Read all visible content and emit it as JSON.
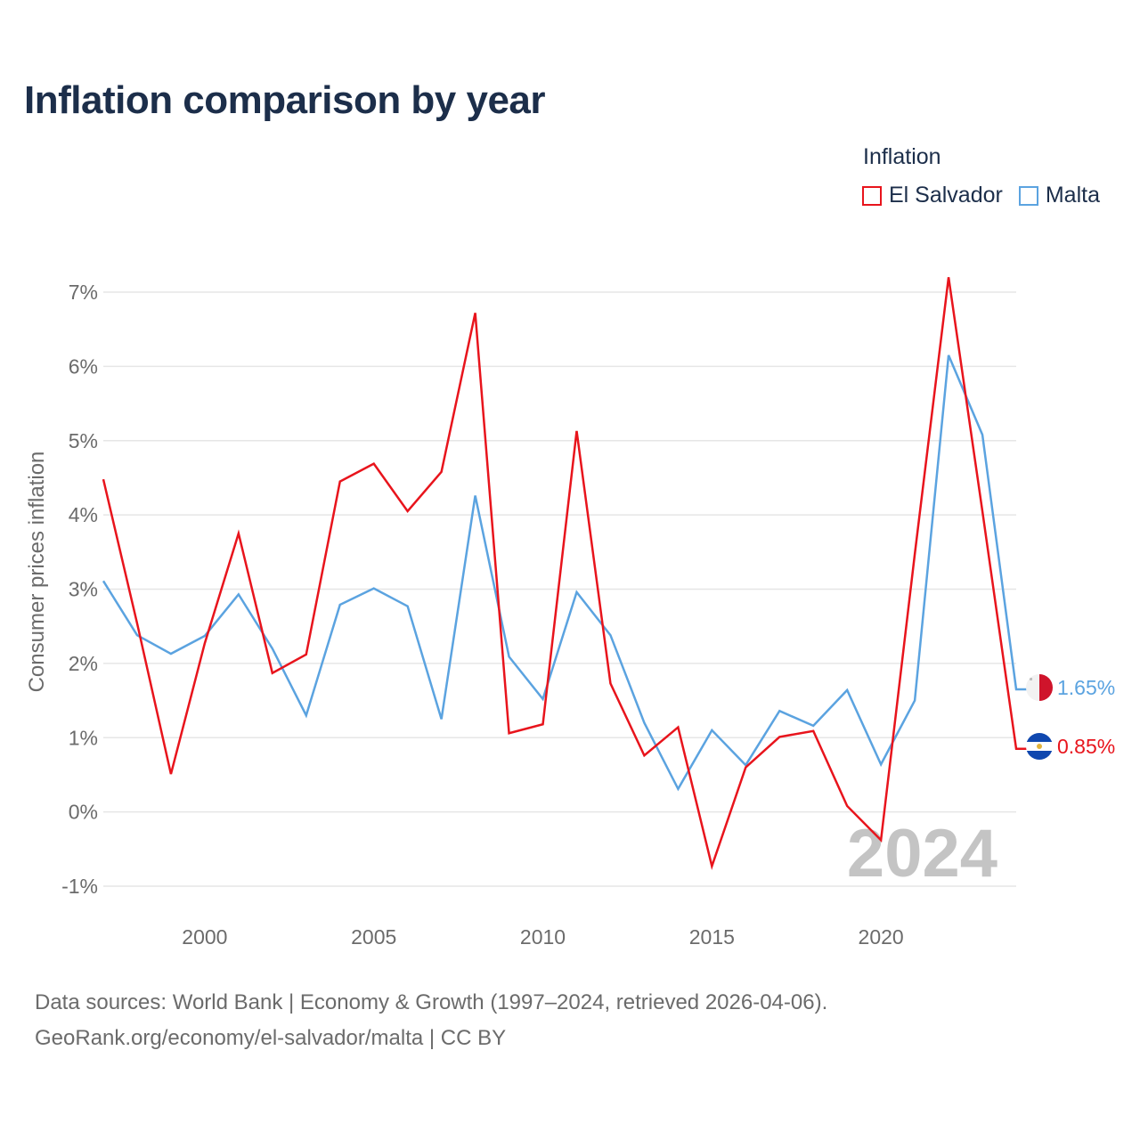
{
  "title": "Inflation comparison by year",
  "legend": {
    "title": "Inflation",
    "items": [
      {
        "label": "El Salvador",
        "color": "#e8141c"
      },
      {
        "label": "Malta",
        "color": "#5ba3e0"
      }
    ]
  },
  "footer": {
    "line1": "Data sources: World Bank | Economy & Growth (1997–2024, retrieved 2026-04-06).",
    "line2": "GeoRank.org/economy/el-salvador/malta | CC BY"
  },
  "chart_data": {
    "type": "line",
    "title": "Inflation comparison by year",
    "xlabel": "",
    "ylabel": "Consumer prices inflation",
    "xlim": [
      1997,
      2024
    ],
    "ylim": [
      -1,
      7
    ],
    "x_ticks": [
      2000,
      2005,
      2010,
      2015,
      2020
    ],
    "x_tick_labels": [
      "2000",
      "2005",
      "2010",
      "2015",
      "2020"
    ],
    "y_ticks": [
      -1,
      0,
      1,
      2,
      3,
      4,
      5,
      6,
      7
    ],
    "y_tick_labels": [
      "-1%",
      "0%",
      "1%",
      "2%",
      "3%",
      "4%",
      "5%",
      "6%",
      "7%"
    ],
    "grid": true,
    "year_watermark": "2024",
    "x": [
      1997,
      1998,
      1999,
      2000,
      2001,
      2002,
      2003,
      2004,
      2005,
      2006,
      2007,
      2008,
      2009,
      2010,
      2011,
      2012,
      2013,
      2014,
      2015,
      2016,
      2017,
      2018,
      2019,
      2020,
      2021,
      2022,
      2023,
      2024
    ],
    "series": [
      {
        "name": "El Salvador",
        "color": "#e8141c",
        "end_label": "0.85%",
        "flag": "el-salvador-flag-icon",
        "values": [
          4.48,
          2.54,
          0.51,
          2.27,
          3.75,
          1.87,
          2.12,
          4.45,
          4.69,
          4.05,
          4.58,
          6.72,
          1.06,
          1.18,
          5.13,
          1.73,
          0.76,
          1.14,
          -0.73,
          0.6,
          1.01,
          1.09,
          0.08,
          -0.38,
          3.47,
          7.2,
          4.05,
          0.85
        ]
      },
      {
        "name": "Malta",
        "color": "#5ba3e0",
        "end_label": "1.65%",
        "flag": "malta-flag-icon",
        "values": [
          3.11,
          2.38,
          2.13,
          2.37,
          2.93,
          2.2,
          1.3,
          2.79,
          3.01,
          2.77,
          1.25,
          4.26,
          2.09,
          1.52,
          2.96,
          2.38,
          1.2,
          0.31,
          1.1,
          0.63,
          1.36,
          1.16,
          1.64,
          0.64,
          1.5,
          6.15,
          5.08,
          1.65
        ]
      }
    ]
  }
}
